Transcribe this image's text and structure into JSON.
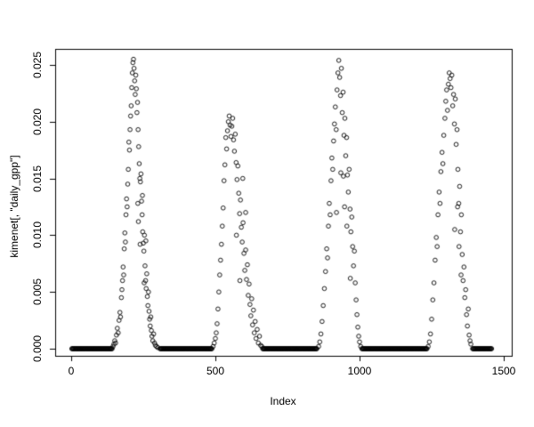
{
  "chart_data": {
    "type": "scatter",
    "title": "",
    "xlabel": "Index",
    "ylabel": "kimenet[, \"daily_gpp\"]",
    "xlim": [
      0,
      1500
    ],
    "ylim": [
      0,
      0.025
    ],
    "grid": false,
    "legend": "none",
    "marker": "open-circle",
    "marker_color": "#000000",
    "xticks": [
      0,
      500,
      1000,
      1500
    ],
    "xtick_labels": [
      "0",
      "500",
      "1000",
      "1500"
    ],
    "yticks": [
      0,
      0.005,
      0.01,
      0.015,
      0.02,
      0.025
    ],
    "ytick_labels": [
      "0.000",
      "0.005",
      "0.010",
      "0.015",
      "0.020",
      "0.025"
    ],
    "zero_runs": [
      [
        2,
        143
      ],
      [
        308,
        488
      ],
      [
        664,
        853
      ],
      [
        1008,
        1234
      ],
      [
        1392,
        1458
      ]
    ],
    "points": [
      [
        145,
        0.0002
      ],
      [
        148,
        0.0004
      ],
      [
        151,
        0.0007
      ],
      [
        154,
        0.0005
      ],
      [
        157,
        0.0012
      ],
      [
        160,
        0.0018
      ],
      [
        163,
        0.0014
      ],
      [
        166,
        0.0025
      ],
      [
        169,
        0.0032
      ],
      [
        171,
        0.0028
      ],
      [
        174,
        0.0045
      ],
      [
        176,
        0.0052
      ],
      [
        178,
        0.006
      ],
      [
        180,
        0.0072
      ],
      [
        182,
        0.0065
      ],
      [
        184,
        0.0088
      ],
      [
        186,
        0.0102
      ],
      [
        188,
        0.0094
      ],
      [
        190,
        0.0118
      ],
      [
        192,
        0.0132
      ],
      [
        194,
        0.0125
      ],
      [
        196,
        0.0145
      ],
      [
        198,
        0.0158
      ],
      [
        200,
        0.0182
      ],
      [
        202,
        0.0175
      ],
      [
        204,
        0.0193
      ],
      [
        206,
        0.0205
      ],
      [
        208,
        0.0214
      ],
      [
        210,
        0.023
      ],
      [
        212,
        0.0243
      ],
      [
        214,
        0.0252
      ],
      [
        216,
        0.0255
      ],
      [
        218,
        0.0247
      ],
      [
        220,
        0.0236
      ],
      [
        222,
        0.0224
      ],
      [
        224,
        0.0241
      ],
      [
        226,
        0.0229
      ],
      [
        228,
        0.0208
      ],
      [
        230,
        0.0217
      ],
      [
        231,
        0.0128
      ],
      [
        232,
        0.0193
      ],
      [
        233,
        0.0112
      ],
      [
        234,
        0.0178
      ],
      [
        236,
        0.0163
      ],
      [
        238,
        0.015
      ],
      [
        239,
        0.0092
      ],
      [
        240,
        0.0147
      ],
      [
        242,
        0.0154
      ],
      [
        244,
        0.013
      ],
      [
        246,
        0.0118
      ],
      [
        247,
        0.0135
      ],
      [
        248,
        0.0103
      ],
      [
        250,
        0.0093
      ],
      [
        252,
        0.0086
      ],
      [
        253,
        0.0058
      ],
      [
        254,
        0.01
      ],
      [
        256,
        0.0073
      ],
      [
        258,
        0.006
      ],
      [
        259,
        0.0095
      ],
      [
        260,
        0.0053
      ],
      [
        262,
        0.0066
      ],
      [
        264,
        0.0046
      ],
      [
        266,
        0.0038
      ],
      [
        268,
        0.005
      ],
      [
        270,
        0.0033
      ],
      [
        272,
        0.0026
      ],
      [
        274,
        0.002
      ],
      [
        276,
        0.0028
      ],
      [
        278,
        0.0016
      ],
      [
        280,
        0.0011
      ],
      [
        283,
        0.0007
      ],
      [
        286,
        0.0013
      ],
      [
        289,
        0.0005
      ],
      [
        292,
        0.0003
      ],
      [
        296,
        0.0002
      ],
      [
        300,
        0.0001
      ],
      [
        492,
        0.0002
      ],
      [
        496,
        0.0005
      ],
      [
        500,
        0.0009
      ],
      [
        503,
        0.0014
      ],
      [
        506,
        0.0022
      ],
      [
        509,
        0.0035
      ],
      [
        512,
        0.005
      ],
      [
        515,
        0.0065
      ],
      [
        518,
        0.0078
      ],
      [
        521,
        0.0092
      ],
      [
        524,
        0.0108
      ],
      [
        527,
        0.0124
      ],
      [
        530,
        0.0148
      ],
      [
        533,
        0.0162
      ],
      [
        536,
        0.0186
      ],
      [
        539,
        0.0176
      ],
      [
        542,
        0.0192
      ],
      [
        545,
        0.02
      ],
      [
        548,
        0.0205
      ],
      [
        551,
        0.0197
      ],
      [
        554,
        0.0187
      ],
      [
        557,
        0.0196
      ],
      [
        560,
        0.0203
      ],
      [
        563,
        0.0184
      ],
      [
        566,
        0.0174
      ],
      [
        569,
        0.0189
      ],
      [
        572,
        0.0164
      ],
      [
        573,
        0.01
      ],
      [
        575,
        0.0149
      ],
      [
        578,
        0.0161
      ],
      [
        581,
        0.0137
      ],
      [
        584,
        0.0119
      ],
      [
        585,
        0.006
      ],
      [
        587,
        0.0131
      ],
      [
        590,
        0.0107
      ],
      [
        593,
        0.0094
      ],
      [
        595,
        0.015
      ],
      [
        596,
        0.0111
      ],
      [
        599,
        0.0084
      ],
      [
        602,
        0.0069
      ],
      [
        605,
        0.0087
      ],
      [
        605,
        0.012
      ],
      [
        608,
        0.0061
      ],
      [
        611,
        0.0074
      ],
      [
        614,
        0.0047
      ],
      [
        617,
        0.0057
      ],
      [
        620,
        0.0039
      ],
      [
        623,
        0.0029
      ],
      [
        626,
        0.0044
      ],
      [
        629,
        0.0021
      ],
      [
        632,
        0.0034
      ],
      [
        635,
        0.0014
      ],
      [
        638,
        0.0024
      ],
      [
        641,
        0.0009
      ],
      [
        645,
        0.0017
      ],
      [
        649,
        0.0005
      ],
      [
        653,
        0.0011
      ],
      [
        657,
        0.0003
      ],
      [
        661,
        0.0002
      ],
      [
        858,
        0.0002
      ],
      [
        862,
        0.0006
      ],
      [
        866,
        0.0013
      ],
      [
        870,
        0.0024
      ],
      [
        874,
        0.0038
      ],
      [
        878,
        0.0053
      ],
      [
        882,
        0.0068
      ],
      [
        886,
        0.0088
      ],
      [
        889,
        0.008
      ],
      [
        892,
        0.0108
      ],
      [
        895,
        0.0128
      ],
      [
        898,
        0.0118
      ],
      [
        901,
        0.0148
      ],
      [
        904,
        0.0168
      ],
      [
        907,
        0.0158
      ],
      [
        910,
        0.0183
      ],
      [
        913,
        0.0198
      ],
      [
        916,
        0.0213
      ],
      [
        919,
        0.0193
      ],
      [
        920,
        0.012
      ],
      [
        922,
        0.0228
      ],
      [
        925,
        0.0243
      ],
      [
        928,
        0.0254
      ],
      [
        931,
        0.0239
      ],
      [
        934,
        0.0223
      ],
      [
        935,
        0.0155
      ],
      [
        937,
        0.0247
      ],
      [
        940,
        0.0208
      ],
      [
        943,
        0.0226
      ],
      [
        944,
        0.0152
      ],
      [
        946,
        0.0188
      ],
      [
        948,
        0.0125
      ],
      [
        949,
        0.0203
      ],
      [
        952,
        0.017
      ],
      [
        955,
        0.0186
      ],
      [
        956,
        0.0108
      ],
      [
        958,
        0.0153
      ],
      [
        961,
        0.0138
      ],
      [
        964,
        0.0158
      ],
      [
        967,
        0.0123
      ],
      [
        968,
        0.0062
      ],
      [
        970,
        0.0103
      ],
      [
        973,
        0.0116
      ],
      [
        976,
        0.009
      ],
      [
        979,
        0.0073
      ],
      [
        982,
        0.0086
      ],
      [
        985,
        0.0058
      ],
      [
        988,
        0.0043
      ],
      [
        991,
        0.003
      ],
      [
        994,
        0.0019
      ],
      [
        997,
        0.0011
      ],
      [
        1000,
        0.0006
      ],
      [
        1004,
        0.0002
      ],
      [
        1238,
        0.0002
      ],
      [
        1242,
        0.0006
      ],
      [
        1246,
        0.0013
      ],
      [
        1250,
        0.0026
      ],
      [
        1254,
        0.0043
      ],
      [
        1258,
        0.0058
      ],
      [
        1262,
        0.0078
      ],
      [
        1266,
        0.0098
      ],
      [
        1269,
        0.009
      ],
      [
        1272,
        0.0118
      ],
      [
        1276,
        0.0138
      ],
      [
        1279,
        0.0128
      ],
      [
        1282,
        0.0156
      ],
      [
        1286,
        0.0173
      ],
      [
        1289,
        0.0163
      ],
      [
        1292,
        0.0188
      ],
      [
        1296,
        0.0203
      ],
      [
        1299,
        0.0218
      ],
      [
        1302,
        0.0228
      ],
      [
        1305,
        0.021
      ],
      [
        1308,
        0.0233
      ],
      [
        1311,
        0.0243
      ],
      [
        1314,
        0.0238
      ],
      [
        1317,
        0.023
      ],
      [
        1320,
        0.0241
      ],
      [
        1323,
        0.0214
      ],
      [
        1326,
        0.0224
      ],
      [
        1329,
        0.0198
      ],
      [
        1330,
        0.0105
      ],
      [
        1332,
        0.022
      ],
      [
        1335,
        0.018
      ],
      [
        1338,
        0.0193
      ],
      [
        1340,
        0.0125
      ],
      [
        1341,
        0.0158
      ],
      [
        1344,
        0.0128
      ],
      [
        1345,
        0.009
      ],
      [
        1347,
        0.0143
      ],
      [
        1350,
        0.0103
      ],
      [
        1352,
        0.0065
      ],
      [
        1353,
        0.0118
      ],
      [
        1356,
        0.0083
      ],
      [
        1359,
        0.006
      ],
      [
        1362,
        0.0072
      ],
      [
        1365,
        0.0045
      ],
      [
        1368,
        0.0052
      ],
      [
        1371,
        0.003
      ],
      [
        1374,
        0.002
      ],
      [
        1377,
        0.0035
      ],
      [
        1380,
        0.0012
      ],
      [
        1383,
        0.0007
      ],
      [
        1386,
        0.0004
      ]
    ]
  }
}
